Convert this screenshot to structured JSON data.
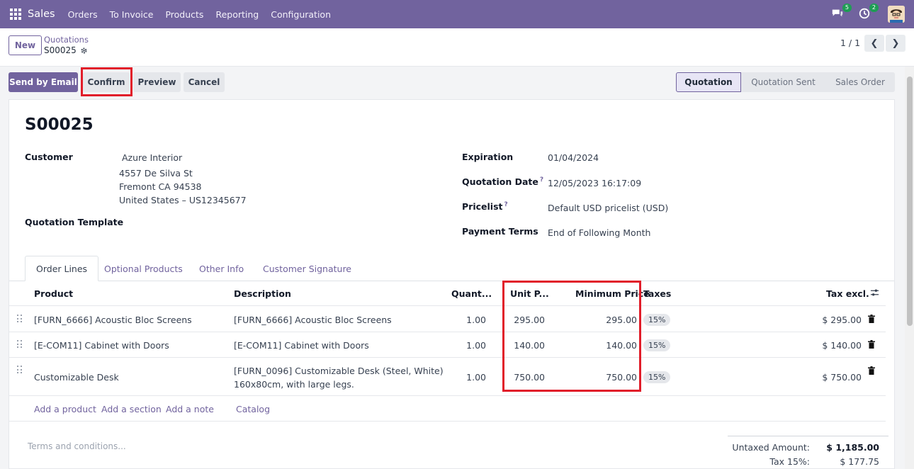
{
  "navbar": {
    "app_name": "Sales",
    "menu": [
      "Orders",
      "To Invoice",
      "Products",
      "Reporting",
      "Configuration"
    ],
    "messages_count": "5",
    "activities_count": "2",
    "accent_color": "#71639e"
  },
  "control_panel": {
    "new_label": "New",
    "breadcrumb_parent": "Quotations",
    "breadcrumb_current": "S00025",
    "pager_value": "1 / 1",
    "prev_icon": "chevron-left-icon",
    "next_icon": "chevron-right-icon"
  },
  "actions": {
    "send_email": "Send by Email",
    "confirm": "Confirm",
    "preview": "Preview",
    "cancel": "Cancel"
  },
  "status_stages": [
    {
      "label": "Quotation",
      "active": true
    },
    {
      "label": "Quotation Sent",
      "active": false
    },
    {
      "label": "Sales Order",
      "active": false
    }
  ],
  "record": {
    "name": "S00025",
    "customer_label": "Customer",
    "customer_name": "Azure Interior",
    "customer_address": [
      "4557 De Silva St",
      "Fremont CA 94538",
      "United States – US12345677"
    ],
    "template_label": "Quotation Template",
    "expiration_label": "Expiration",
    "expiration_value": "01/04/2024",
    "quotation_date_label": "Quotation Date",
    "quotation_date_value": "12/05/2023 16:17:09",
    "pricelist_label": "Pricelist",
    "pricelist_value": "Default USD pricelist (USD)",
    "payment_terms_label": "Payment Terms",
    "payment_terms_value": "End of Following Month",
    "help_mark": "?"
  },
  "tabs": [
    "Order Lines",
    "Optional Products",
    "Other Info",
    "Customer Signature"
  ],
  "table": {
    "headers": {
      "product": "Product",
      "description": "Description",
      "quantity": "Quant...",
      "unit_price": "Unit P...",
      "min_price": "Minimum Price",
      "taxes": "Taxes",
      "tax_excl": "Tax excl."
    },
    "rows": [
      {
        "product": "[FURN_6666] Acoustic Bloc Screens",
        "description": [
          "[FURN_6666] Acoustic Bloc Screens"
        ],
        "quantity": "1.00",
        "unit_price": "295.00",
        "min_price": "295.00",
        "tax": "15%",
        "subtotal": "$ 295.00"
      },
      {
        "product": "[E-COM11] Cabinet with Doors",
        "description": [
          "[E-COM11] Cabinet with Doors"
        ],
        "quantity": "1.00",
        "unit_price": "140.00",
        "min_price": "140.00",
        "tax": "15%",
        "subtotal": "$ 140.00"
      },
      {
        "product": "Customizable Desk",
        "description": [
          "[FURN_0096] Customizable Desk (Steel, White)",
          "160x80cm, with large legs."
        ],
        "quantity": "1.00",
        "unit_price": "750.00",
        "min_price": "750.00",
        "tax": "15%",
        "subtotal": "$ 750.00"
      }
    ],
    "add_links": [
      "Add a product",
      "Add a section",
      "Add a note",
      "Catalog"
    ]
  },
  "footer": {
    "terms_placeholder": "Terms and conditions...",
    "untaxed_label": "Untaxed Amount:",
    "untaxed_value": "$ 1,185.00",
    "tax_label": "Tax 15%:",
    "tax_value": "$ 177.75"
  },
  "highlight_color": "#e11d2a"
}
